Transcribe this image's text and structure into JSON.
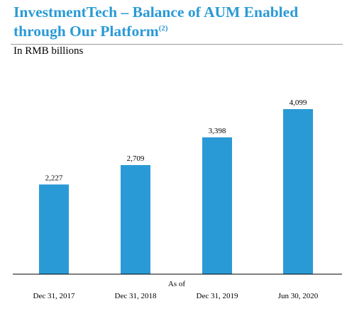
{
  "title": {
    "line1": "InvestmentTech – Balance of AUM Enabled",
    "line2": "through Our Platform",
    "footnote": "(2)"
  },
  "subtitle": "In RMB billions",
  "chart_data": {
    "type": "bar",
    "title": "InvestmentTech – Balance of AUM Enabled through Our Platform",
    "ylabel": "In RMB billions",
    "xlabel": "As of",
    "categories": [
      "Dec 31, 2017",
      "Dec 31, 2018",
      "Dec 31, 2019",
      "Jun 30, 2020"
    ],
    "values": [
      2227,
      2709,
      3398,
      4099
    ],
    "value_labels": [
      "2,227",
      "2,709",
      "3,398",
      "4,099"
    ],
    "bar_color": "#2a9ad6",
    "grid": false,
    "legend": "none"
  }
}
